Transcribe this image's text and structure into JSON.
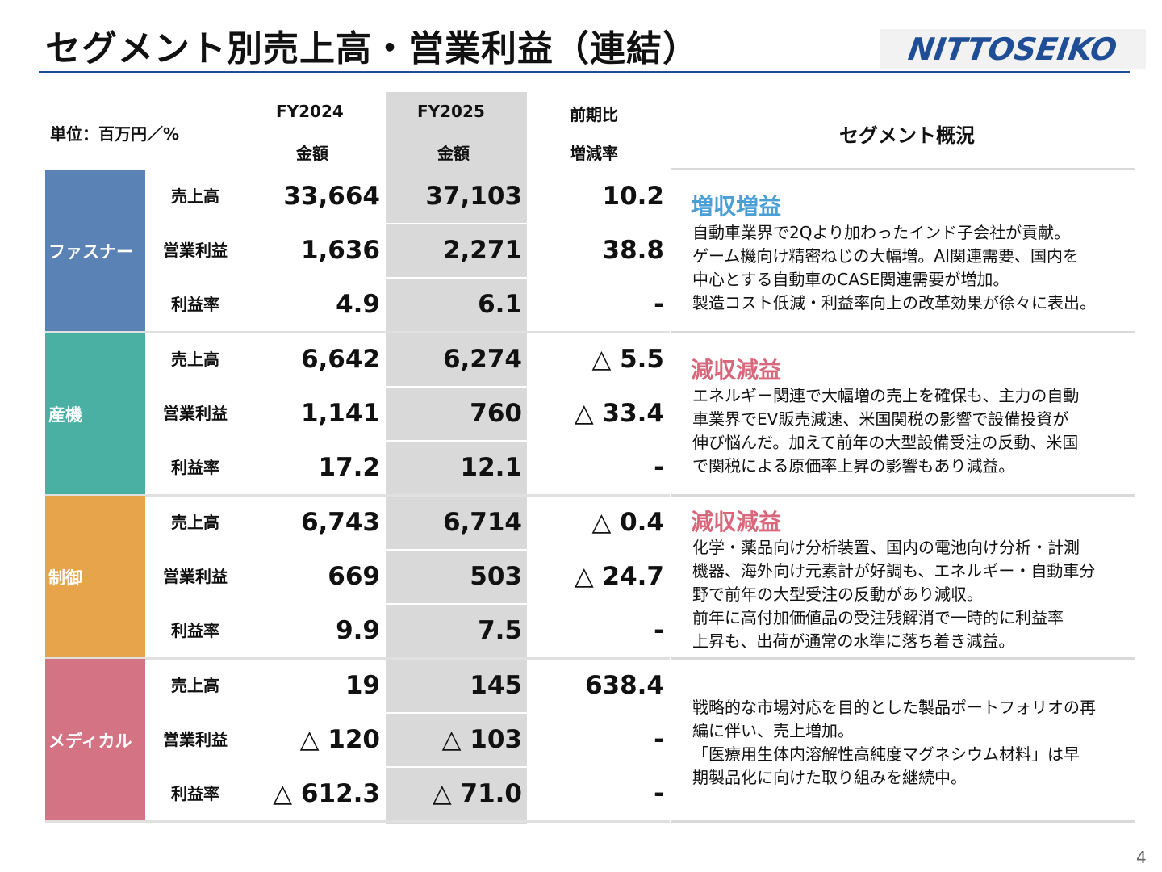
{
  "title": "セグメント別売上高・営業利益（連結）",
  "logo_text": "NITTOSEIKO",
  "header": {
    "unit": "単位：百万円／%",
    "fy2024": "FY2024",
    "fy2025": "FY2025",
    "amount_label": "金額",
    "yoy_top": "前期比",
    "yoy_bottom": "増減率",
    "overview": "セグメント概況"
  },
  "colors": {
    "fastener": "#5b82b4",
    "industrial": "#4ab0a4",
    "control": "#e8a44a",
    "medical": "#d37384",
    "increase": "#4a9fd4",
    "decrease": "#d9667a",
    "rule": "#1f4e96"
  },
  "segments": [
    {
      "name": "ファスナー",
      "rows": [
        {
          "label": "売上高",
          "fy2024": "33,664",
          "fy2025": "37,103",
          "change": "10.2"
        },
        {
          "label": "営業利益",
          "fy2024": "1,636",
          "fy2025": "2,271",
          "change": "38.8"
        },
        {
          "label": "利益率",
          "fy2024": "4.9",
          "fy2025": "6.1",
          "change": "-"
        }
      ],
      "comment_title": "増収増益",
      "comment_lines": [
        "自動車業界で2Qより加わったインド子会社が貢献。",
        "ゲーム機向け精密ねじの大幅増。AI関連需要、国内を",
        "中心とする自動車のCASE関連需要が増加。",
        "製造コスト低減・利益率向上の改革効果が徐々に表出。"
      ]
    },
    {
      "name": "産機",
      "rows": [
        {
          "label": "売上高",
          "fy2024": "6,642",
          "fy2025": "6,274",
          "change": "△ 5.5"
        },
        {
          "label": "営業利益",
          "fy2024": "1,141",
          "fy2025": "760",
          "change": "△ 33.4"
        },
        {
          "label": "利益率",
          "fy2024": "17.2",
          "fy2025": "12.1",
          "change": "-"
        }
      ],
      "comment_title": "減収減益",
      "comment_lines": [
        "エネルギー関連で大幅増の売上を確保も、主力の自動",
        "車業界でEV販売減速、米国関税の影響で設備投資が",
        "伸び悩んだ。加えて前年の大型設備受注の反動、米国",
        "で関税による原価率上昇の影響もあり減益。"
      ]
    },
    {
      "name": "制御",
      "rows": [
        {
          "label": "売上高",
          "fy2024": "6,743",
          "fy2025": "6,714",
          "change": "△ 0.4"
        },
        {
          "label": "営業利益",
          "fy2024": "669",
          "fy2025": "503",
          "change": "△ 24.7"
        },
        {
          "label": "利益率",
          "fy2024": "9.9",
          "fy2025": "7.5",
          "change": "-"
        }
      ],
      "comment_title": "減収減益",
      "comment_lines": [
        "化学・薬品向け分析装置、国内の電池向け分析・計測",
        "機器、海外向け元素計が好調も、エネルギー・自動車分",
        "野で前年の大型受注の反動があり減収。",
        "前年に高付加価値品の受注残解消で一時的に利益率",
        "上昇も、出荷が通常の水準に落ち着き減益。"
      ]
    },
    {
      "name": "メディカル",
      "rows": [
        {
          "label": "売上高",
          "fy2024": "19",
          "fy2025": "145",
          "change": "638.4"
        },
        {
          "label": "営業利益",
          "fy2024": "△ 120",
          "fy2025": "△ 103",
          "change": "-"
        },
        {
          "label": "利益率",
          "fy2024": "△ 612.3",
          "fy2025": "△ 71.0",
          "change": "-"
        }
      ],
      "comment_title": "",
      "comment_lines": [
        "戦略的な市場対応を目的とした製品ポートフォリオの再",
        "編に伴い、売上増加。",
        "「医療用生体内溶解性高純度マグネシウム材料」は早",
        "期製品化に向けた取り組みを継続中。"
      ]
    }
  ],
  "page_number": "4"
}
